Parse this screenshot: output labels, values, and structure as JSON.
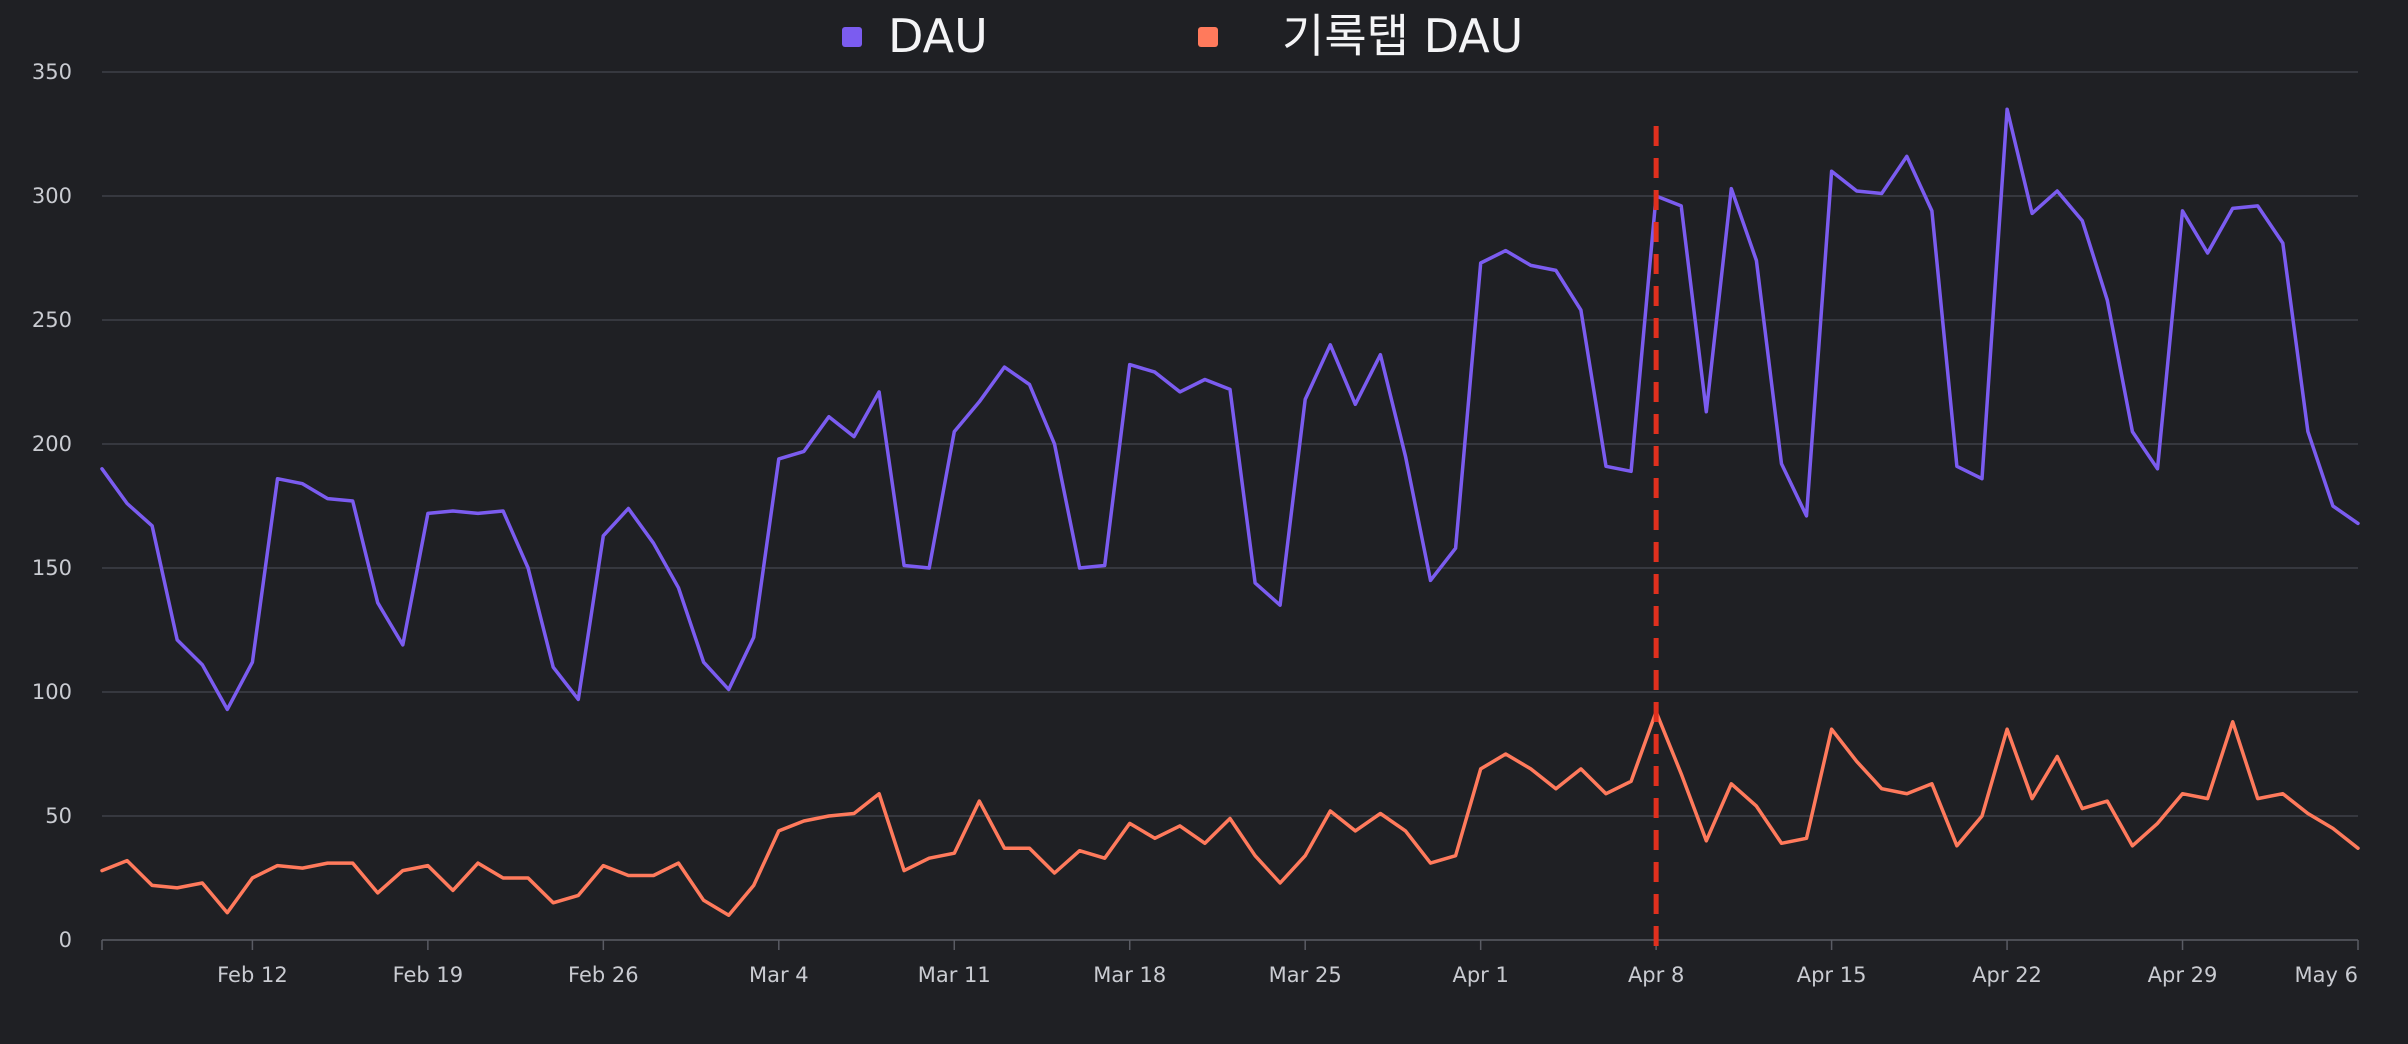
{
  "chart_data": {
    "type": "line",
    "x_start": "2024-02-06",
    "x_ticks": [
      "Feb 12",
      "Feb 19",
      "Feb 26",
      "Mar 4",
      "Mar 11",
      "Mar 18",
      "Mar 25",
      "Apr 1",
      "Apr 8",
      "Apr 15",
      "Apr 22",
      "Apr 29",
      "May 6"
    ],
    "ylim": [
      0,
      350
    ],
    "y_ticks": [
      0,
      50,
      100,
      150,
      200,
      250,
      300,
      350
    ],
    "grid": true,
    "legend_position": "top-center",
    "reference_line": {
      "x": "Apr 8",
      "color": "#e0301e",
      "style": "dashed"
    },
    "series": [
      {
        "name": "DAU",
        "color": "#7b5cf0",
        "values": [
          190,
          176,
          167,
          121,
          111,
          93,
          112,
          186,
          184,
          178,
          177,
          136,
          119,
          172,
          173,
          172,
          173,
          150,
          110,
          97,
          163,
          174,
          160,
          142,
          112,
          101,
          122,
          194,
          197,
          211,
          203,
          221,
          151,
          150,
          205,
          217,
          231,
          224,
          200,
          150,
          151,
          232,
          229,
          221,
          226,
          222,
          144,
          135,
          218,
          240,
          216,
          236,
          195,
          145,
          158,
          273,
          278,
          272,
          270,
          254,
          191,
          189,
          300,
          296,
          213,
          303,
          274,
          192,
          171,
          310,
          302,
          301,
          316,
          294,
          191,
          186,
          335,
          293,
          302,
          290,
          258,
          205,
          190,
          294,
          277,
          295,
          296,
          281,
          205,
          175,
          168
        ]
      },
      {
        "name": "기록탭 DAU",
        "color": "#ff7a5c",
        "values": [
          28,
          32,
          22,
          21,
          23,
          11,
          25,
          30,
          29,
          31,
          31,
          19,
          28,
          30,
          20,
          31,
          25,
          25,
          15,
          18,
          30,
          26,
          26,
          31,
          16,
          10,
          22,
          44,
          48,
          50,
          51,
          59,
          28,
          33,
          35,
          56,
          37,
          37,
          27,
          36,
          33,
          47,
          41,
          46,
          39,
          49,
          34,
          23,
          34,
          52,
          44,
          51,
          44,
          31,
          34,
          69,
          75,
          69,
          61,
          69,
          59,
          64,
          92,
          67,
          40,
          63,
          54,
          39,
          41,
          85,
          72,
          61,
          59,
          63,
          38,
          50,
          85,
          57,
          74,
          53,
          56,
          38,
          47,
          59,
          57,
          88,
          57,
          59,
          51,
          45,
          37
        ]
      }
    ]
  }
}
